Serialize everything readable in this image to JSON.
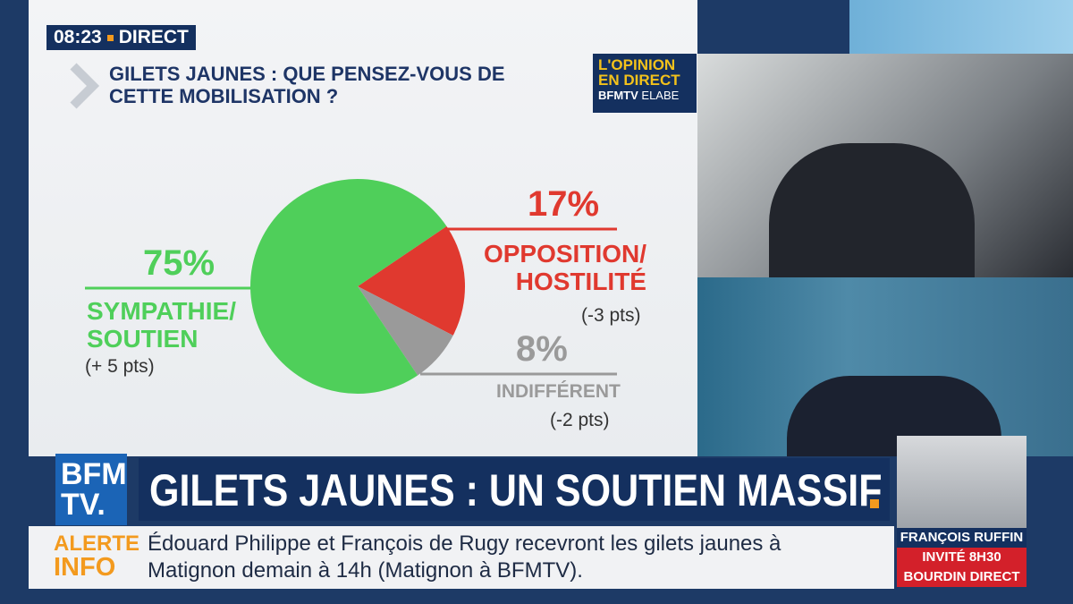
{
  "clock": {
    "time": "08:23",
    "status": "DIRECT"
  },
  "header": {
    "title": "GILETS JAUNES : QUE PENSEZ-VOUS DE\nCETTE MOBILISATION ?"
  },
  "logo": {
    "line1": "L'OPINION",
    "line2": "EN DIRECT",
    "brand": "BFMTV",
    "partner": "ELABE"
  },
  "chart_data": {
    "type": "pie",
    "categories": [
      "SYMPATHIE/\nSOUTIEN",
      "OPPOSITION/\nHOSTILITÉ",
      "INDIFFÉRENT"
    ],
    "values": [
      75,
      17,
      8
    ],
    "value_labels": [
      "75%",
      "17%",
      "8%"
    ],
    "colors": [
      "#4fcf5a",
      "#e0392f",
      "#9a9a9a"
    ],
    "changes": [
      "(+ 5 pts)",
      "(-3 pts)",
      "(-2 pts)"
    ]
  },
  "channel": {
    "line1": "BFM",
    "line2": "TV."
  },
  "banner": {
    "headline": "GILETS JAUNES : UN SOUTIEN MASSIF"
  },
  "ticker": {
    "label1": "ALERTE",
    "label2": "INFO",
    "text": "Édouard Philippe et François de Rugy recevront les gilets jaunes à\nMatignon demain à 14h (Matignon à BFMTV)."
  },
  "guest": {
    "name": "FRANÇOIS RUFFIN",
    "slot": "INVITÉ 8H30",
    "show": "BOURDIN DIRECT"
  }
}
